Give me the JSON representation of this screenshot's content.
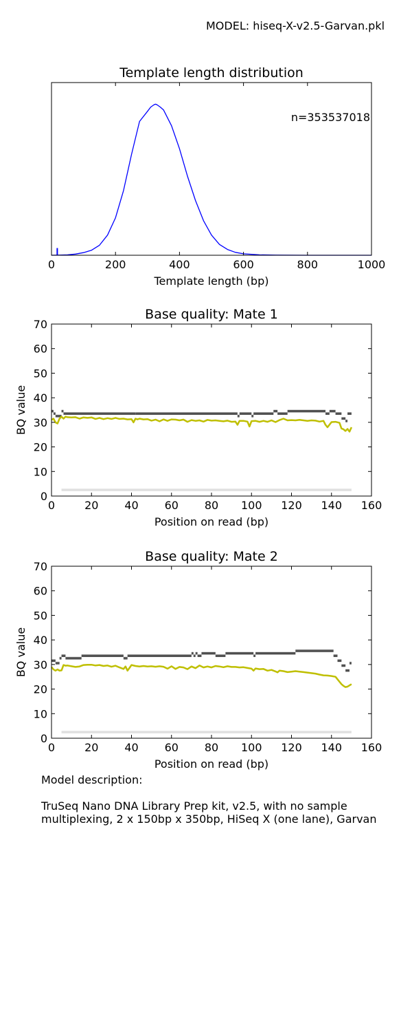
{
  "model_label": "MODEL: hiseq-X-v2.5-Garvan.pkl",
  "description": {
    "heading": "Model description:",
    "text": "TruSeq Nano DNA Library Prep kit, v2.5, with no sample multiplexing, 2 x 150bp x 350bp, HiSeq X (one lane), Garvan"
  },
  "colors": {
    "template_line": "#0000ff",
    "mean_line": "#bfbf00",
    "density": "#505050"
  },
  "chart_data": [
    {
      "type": "line",
      "title": "Template length distribution",
      "xlabel": "Template length (bp)",
      "ylabel": "",
      "annotation": "n=353537018",
      "xlim": [
        0,
        1000
      ],
      "ylim": [
        0,
        1.2
      ],
      "xticks": [
        0,
        200,
        400,
        600,
        800,
        1000
      ],
      "yticks": [],
      "grid": false,
      "spike": {
        "x": 18,
        "y": 0.05
      },
      "series": [
        {
          "x": [
            0,
            25,
            50,
            75,
            100,
            125,
            150,
            175,
            200,
            225,
            250,
            275,
            300,
            310,
            320,
            325,
            330,
            340,
            350,
            375,
            400,
            425,
            450,
            475,
            500,
            525,
            550,
            575,
            600,
            650,
            700,
            800,
            900,
            1000
          ],
          "y": [
            0,
            0.001,
            0.003,
            0.008,
            0.018,
            0.035,
            0.07,
            0.14,
            0.26,
            0.45,
            0.7,
            0.93,
            1.0,
            1.03,
            1.045,
            1.05,
            1.045,
            1.03,
            1.01,
            0.9,
            0.74,
            0.55,
            0.38,
            0.24,
            0.14,
            0.075,
            0.04,
            0.02,
            0.01,
            0.003,
            0.001,
            0,
            0,
            0
          ]
        }
      ]
    },
    {
      "type": "heatmap",
      "title": "Base quality: Mate 1",
      "xlabel": "Position on read (bp)",
      "ylabel": "BQ value",
      "xlim": [
        0,
        160
      ],
      "ylim": [
        0,
        70
      ],
      "xticks": [
        0,
        20,
        40,
        60,
        80,
        100,
        120,
        140,
        160
      ],
      "yticks": [
        0,
        10,
        20,
        30,
        40,
        50,
        60,
        70
      ],
      "grid": false,
      "low_band": {
        "x_start": 5,
        "x_end": 150,
        "y": 2
      },
      "density_segments": [
        {
          "x_start": 0,
          "x_end": 1,
          "y": 34
        },
        {
          "x_start": 1,
          "x_end": 2,
          "y": 33
        },
        {
          "x_start": 2,
          "x_end": 5,
          "y": 32
        },
        {
          "x_start": 5,
          "x_end": 6,
          "y": 34
        },
        {
          "x_start": 6,
          "x_end": 42,
          "y": 33
        },
        {
          "x_start": 42,
          "x_end": 93,
          "y": 33
        },
        {
          "x_start": 93,
          "x_end": 94,
          "y": 32
        },
        {
          "x_start": 94,
          "x_end": 100,
          "y": 33
        },
        {
          "x_start": 100,
          "x_end": 101,
          "y": 32
        },
        {
          "x_start": 101,
          "x_end": 111,
          "y": 33
        },
        {
          "x_start": 111,
          "x_end": 113,
          "y": 34
        },
        {
          "x_start": 113,
          "x_end": 118,
          "y": 33
        },
        {
          "x_start": 118,
          "x_end": 137,
          "y": 34
        },
        {
          "x_start": 137,
          "x_end": 139,
          "y": 33
        },
        {
          "x_start": 139,
          "x_end": 142,
          "y": 34
        },
        {
          "x_start": 142,
          "x_end": 145,
          "y": 33
        },
        {
          "x_start": 145,
          "x_end": 147,
          "y": 31
        },
        {
          "x_start": 147,
          "x_end": 148,
          "y": 30
        },
        {
          "x_start": 148,
          "x_end": 150,
          "y": 33
        }
      ],
      "mean_series": {
        "x": [
          0,
          1,
          2,
          3,
          4,
          5,
          6,
          7,
          8,
          10,
          12,
          14,
          16,
          18,
          20,
          22,
          24,
          26,
          28,
          30,
          32,
          34,
          36,
          38,
          40,
          41,
          42,
          43,
          44,
          46,
          48,
          50,
          52,
          54,
          56,
          58,
          60,
          62,
          64,
          66,
          68,
          70,
          72,
          74,
          76,
          78,
          80,
          82,
          84,
          86,
          88,
          90,
          92,
          93,
          94,
          96,
          98,
          99,
          100,
          102,
          104,
          106,
          108,
          110,
          112,
          114,
          116,
          118,
          120,
          122,
          124,
          126,
          128,
          130,
          132,
          134,
          136,
          137,
          138,
          140,
          142,
          144,
          145,
          146,
          147,
          148,
          149,
          150
        ],
        "y": [
          31,
          31.5,
          30,
          29.5,
          31.5,
          32.3,
          31.5,
          32.3,
          32.1,
          32,
          32.1,
          31.5,
          32,
          31.8,
          32,
          31.4,
          31.8,
          31.3,
          31.7,
          31.4,
          31.8,
          31.4,
          31.5,
          31.2,
          31.3,
          30,
          31.5,
          31.2,
          31.5,
          31.2,
          31.3,
          30.7,
          31.1,
          30.4,
          31.2,
          30.6,
          31.2,
          31.1,
          30.8,
          31.1,
          30.2,
          30.9,
          30.6,
          30.8,
          30.3,
          31,
          30.7,
          30.8,
          30.6,
          30.4,
          30.7,
          30.2,
          30.3,
          29,
          30.6,
          30.6,
          30.3,
          28.3,
          30.5,
          30.6,
          30.2,
          30.6,
          30.2,
          30.8,
          30.1,
          30.9,
          31.5,
          30.8,
          30.9,
          30.8,
          31,
          30.8,
          30.6,
          30.8,
          30.7,
          30.3,
          30.6,
          29,
          28,
          30.1,
          30.2,
          29.8,
          27.5,
          27.2,
          26.5,
          27.3,
          26.2,
          28
        ]
      }
    },
    {
      "type": "heatmap",
      "title": "Base quality: Mate 2",
      "xlabel": "Position on read (bp)",
      "ylabel": "BQ value",
      "xlim": [
        0,
        160
      ],
      "ylim": [
        0,
        70
      ],
      "xticks": [
        0,
        20,
        40,
        60,
        80,
        100,
        120,
        140,
        160
      ],
      "yticks": [
        0,
        10,
        20,
        30,
        40,
        50,
        60,
        70
      ],
      "grid": false,
      "low_band": {
        "x_start": 5,
        "x_end": 150,
        "y": 2
      },
      "density_segments": [
        {
          "x_start": 0,
          "x_end": 2,
          "y": 31
        },
        {
          "x_start": 2,
          "x_end": 4,
          "y": 30
        },
        {
          "x_start": 4,
          "x_end": 5,
          "y": 32
        },
        {
          "x_start": 5,
          "x_end": 7,
          "y": 33
        },
        {
          "x_start": 7,
          "x_end": 15,
          "y": 32
        },
        {
          "x_start": 15,
          "x_end": 36,
          "y": 33
        },
        {
          "x_start": 36,
          "x_end": 38,
          "y": 32
        },
        {
          "x_start": 38,
          "x_end": 70,
          "y": 33
        },
        {
          "x_start": 70,
          "x_end": 71,
          "y": 34
        },
        {
          "x_start": 71,
          "x_end": 72,
          "y": 33
        },
        {
          "x_start": 72,
          "x_end": 73,
          "y": 34
        },
        {
          "x_start": 73,
          "x_end": 75,
          "y": 33
        },
        {
          "x_start": 75,
          "x_end": 82,
          "y": 34
        },
        {
          "x_start": 82,
          "x_end": 87,
          "y": 33
        },
        {
          "x_start": 87,
          "x_end": 101,
          "y": 34
        },
        {
          "x_start": 101,
          "x_end": 102,
          "y": 33
        },
        {
          "x_start": 102,
          "x_end": 122,
          "y": 34
        },
        {
          "x_start": 122,
          "x_end": 141,
          "y": 35
        },
        {
          "x_start": 141,
          "x_end": 143,
          "y": 33
        },
        {
          "x_start": 143,
          "x_end": 145,
          "y": 31
        },
        {
          "x_start": 145,
          "x_end": 147,
          "y": 29
        },
        {
          "x_start": 147,
          "x_end": 149,
          "y": 27
        },
        {
          "x_start": 149,
          "x_end": 150,
          "y": 30
        }
      ],
      "mean_series": {
        "x": [
          0,
          1,
          2,
          3,
          4,
          5,
          6,
          7,
          8,
          10,
          12,
          14,
          16,
          18,
          20,
          22,
          24,
          26,
          28,
          30,
          32,
          34,
          36,
          37,
          38,
          40,
          42,
          44,
          46,
          48,
          50,
          52,
          54,
          56,
          58,
          60,
          62,
          64,
          66,
          68,
          70,
          72,
          74,
          76,
          78,
          80,
          82,
          84,
          86,
          88,
          90,
          92,
          94,
          96,
          98,
          100,
          101,
          102,
          104,
          106,
          108,
          110,
          112,
          113,
          114,
          116,
          118,
          120,
          122,
          124,
          126,
          128,
          130,
          132,
          134,
          136,
          138,
          140,
          142,
          143,
          144,
          145,
          146,
          147,
          148,
          149,
          150
        ],
        "y": [
          29,
          28,
          27.5,
          28,
          27.5,
          27.6,
          29.8,
          29.5,
          29.6,
          29.3,
          29,
          29.2,
          29.8,
          29.9,
          29.9,
          29.6,
          29.8,
          29.4,
          29.6,
          29.1,
          29.5,
          28.8,
          28.2,
          29.2,
          27.5,
          29.8,
          29.4,
          29.2,
          29.4,
          29.2,
          29.3,
          29.1,
          29.3,
          29.1,
          28.3,
          29.3,
          28.2,
          29,
          28.8,
          28.1,
          29.2,
          28.5,
          29.6,
          28.8,
          29.2,
          28.8,
          29.4,
          29.2,
          28.9,
          29.3,
          29,
          29,
          28.8,
          28.9,
          28.6,
          28.3,
          27.5,
          28.4,
          28.1,
          28.2,
          27.5,
          27.8,
          27.2,
          26.8,
          27.5,
          27.3,
          26.9,
          27.1,
          27.3,
          27.1,
          26.9,
          26.7,
          26.5,
          26.3,
          25.9,
          25.6,
          25.5,
          25.3,
          25,
          24,
          23,
          22,
          21.3,
          20.8,
          21,
          21.5,
          22
        ]
      }
    }
  ]
}
